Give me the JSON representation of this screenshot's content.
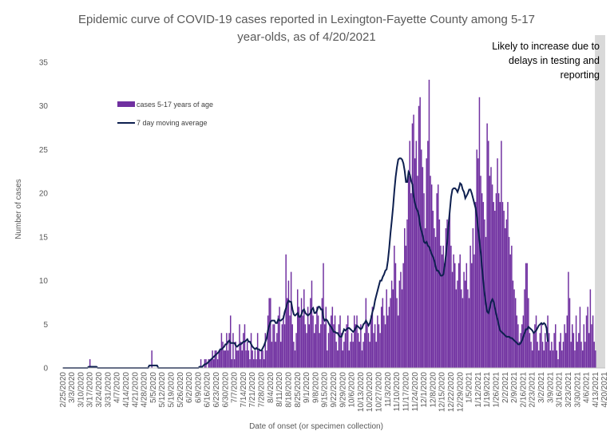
{
  "chart_data": {
    "type": "bar",
    "title_lines": [
      "Epidemic curve of COVID-19 cases reported in Lexington-Fayette County among 5-17",
      "year-olds, as of 4/20/2021"
    ],
    "xlabel": "Date of onset (or specimen collection)",
    "ylabel": "Number of cases",
    "ylim": [
      0,
      35
    ],
    "yticks": [
      0,
      5,
      10,
      15,
      20,
      25,
      30,
      35
    ],
    "x_tick_labels": [
      "2/25/2020",
      "3/3/2020",
      "3/10/2020",
      "3/17/2020",
      "3/24/2020",
      "3/31/2020",
      "4/7/2020",
      "4/14/2020",
      "4/21/2020",
      "4/28/2020",
      "5/5/2020",
      "5/12/2020",
      "5/19/2020",
      "5/26/2020",
      "6/2/2020",
      "6/9/2020",
      "6/16/2020",
      "6/23/2020",
      "6/30/2020",
      "7/7/2020",
      "7/14/2020",
      "7/21/2020",
      "7/28/2020",
      "8/4/2020",
      "8/11/2020",
      "8/18/2020",
      "8/25/2020",
      "9/1/2020",
      "9/8/2020",
      "9/15/2020",
      "9/22/2020",
      "9/29/2020",
      "10/6/2020",
      "10/13/2020",
      "10/20/2020",
      "10/27/2020",
      "11/3/2020",
      "11/10/2020",
      "11/17/2020",
      "11/24/2020",
      "12/1/2020",
      "12/8/2020",
      "12/15/2020",
      "12/22/2020",
      "12/29/2020",
      "1/5/2021",
      "1/12/2021",
      "1/19/2021",
      "1/26/2021",
      "2/2/2021",
      "2/9/2021",
      "2/16/2021",
      "2/23/2021",
      "3/2/2021",
      "3/9/2021",
      "3/16/2021",
      "3/23/2021",
      "3/30/2021",
      "4/6/2021",
      "4/13/2021",
      "4/20/2021"
    ],
    "x_start": "2/25/2020",
    "x_end": "4/20/2021",
    "legend_position": "upper-left",
    "annotation": {
      "lines": [
        "Likely to increase due to",
        "delays in testing and",
        "reporting"
      ],
      "shaded_from": "4/13/2021",
      "shaded_to": "4/20/2021",
      "shade_color": "#d9d9d9"
    },
    "colors": {
      "bars": "#7030a0",
      "line": "#0d1f4f",
      "axis": "#bfbfbf",
      "text": "#595959"
    },
    "series": [
      {
        "name": "cases 5-17 years of age",
        "type": "bar",
        "values": [
          0,
          0,
          0,
          0,
          0,
          0,
          0,
          0,
          0,
          0,
          0,
          0,
          0,
          0,
          0,
          0,
          0,
          0,
          0,
          0,
          0,
          1,
          0,
          0,
          0,
          0,
          0,
          0,
          0,
          0,
          0,
          0,
          0,
          0,
          0,
          0,
          0,
          0,
          0,
          0,
          0,
          0,
          0,
          0,
          0,
          0,
          0,
          0,
          0,
          0,
          0,
          0,
          0,
          0,
          0,
          0,
          0,
          0,
          0,
          0,
          0,
          0,
          0,
          0,
          0,
          0,
          0,
          0,
          0,
          2,
          0,
          0,
          0,
          0,
          0,
          0,
          0,
          0,
          0,
          0,
          0,
          0,
          0,
          0,
          0,
          0,
          0,
          0,
          0,
          0,
          0,
          0,
          0,
          0,
          0,
          0,
          0,
          0,
          0,
          0,
          0,
          0,
          0,
          0,
          0,
          0,
          0,
          1,
          0,
          0,
          1,
          1,
          0,
          1,
          1,
          1,
          2,
          1,
          2,
          2,
          1,
          2,
          2,
          4,
          3,
          2,
          2,
          4,
          2,
          4,
          6,
          1,
          4,
          1,
          3,
          2,
          2,
          5,
          3,
          2,
          4,
          5,
          2,
          3,
          2,
          1,
          4,
          2,
          1,
          2,
          1,
          4,
          2,
          1,
          2,
          2,
          1,
          4,
          2,
          6,
          8,
          8,
          3,
          5,
          5,
          3,
          4,
          6,
          7,
          3,
          5,
          6,
          5,
          13,
          8,
          10,
          6,
          11,
          5,
          3,
          2,
          4,
          9,
          7,
          6,
          8,
          6,
          9,
          5,
          4,
          7,
          5,
          8,
          10,
          6,
          4,
          5,
          7,
          6,
          4,
          5,
          8,
          12,
          5,
          7,
          2,
          4,
          5,
          6,
          7,
          5,
          6,
          3,
          2,
          5,
          6,
          4,
          2,
          3,
          4,
          5,
          6,
          2,
          3,
          4,
          3,
          6,
          5,
          6,
          4,
          3,
          5,
          2,
          3,
          4,
          8,
          5,
          4,
          3,
          6,
          7,
          4,
          5,
          3,
          6,
          5,
          4,
          7,
          8,
          6,
          5,
          9,
          6,
          7,
          8,
          10,
          9,
          14,
          12,
          8,
          6,
          10,
          11,
          9,
          12,
          16,
          14,
          17,
          22,
          26,
          20,
          28,
          29,
          24,
          26,
          22,
          30,
          31,
          25,
          23,
          20,
          16,
          24,
          26,
          33,
          22,
          21,
          18,
          16,
          15,
          20,
          21,
          17,
          14,
          13,
          14,
          12,
          16,
          17,
          16,
          18,
          14,
          11,
          13,
          12,
          9,
          10,
          12,
          13,
          9,
          8,
          11,
          10,
          12,
          9,
          8,
          14,
          12,
          16,
          13,
          19,
          25,
          24,
          31,
          22,
          20,
          19,
          17,
          15,
          28,
          26,
          22,
          23,
          21,
          19,
          18,
          20,
          24,
          20,
          19,
          26,
          19,
          18,
          16,
          17,
          19,
          15,
          13,
          14,
          10,
          9,
          8,
          6,
          5,
          3,
          4,
          5,
          6,
          9,
          12,
          12,
          8,
          4,
          3,
          2,
          4,
          5,
          6,
          3,
          2,
          4,
          5,
          3,
          2,
          4,
          3,
          6,
          4,
          2,
          3,
          2,
          4,
          5,
          2,
          1,
          3,
          4,
          2,
          3,
          5,
          4,
          6,
          11,
          8,
          3,
          5,
          4,
          2,
          6,
          3,
          4,
          7,
          3,
          2,
          5,
          3,
          6,
          7,
          4,
          9,
          5,
          6,
          3,
          2
        ]
      },
      {
        "name": "7 day moving average",
        "type": "line",
        "values": [
          0,
          0,
          0,
          0,
          0,
          0,
          0,
          0,
          0,
          0,
          0,
          0,
          0,
          0,
          0,
          0,
          0,
          0,
          0,
          0,
          0.14,
          0.14,
          0.14,
          0.14,
          0.14,
          0.14,
          0.14,
          0,
          0,
          0,
          0,
          0,
          0,
          0,
          0,
          0,
          0,
          0,
          0,
          0,
          0,
          0,
          0,
          0,
          0,
          0,
          0,
          0,
          0,
          0,
          0,
          0,
          0,
          0,
          0,
          0,
          0,
          0,
          0,
          0,
          0,
          0,
          0,
          0,
          0,
          0,
          0,
          0.29,
          0.29,
          0.29,
          0.29,
          0.29,
          0.29,
          0.29,
          0,
          0,
          0,
          0,
          0,
          0,
          0,
          0,
          0,
          0,
          0,
          0,
          0,
          0,
          0,
          0,
          0,
          0,
          0,
          0,
          0,
          0,
          0,
          0,
          0,
          0,
          0,
          0,
          0,
          0,
          0,
          0,
          0.14,
          0.14,
          0.14,
          0.29,
          0.43,
          0.43,
          0.57,
          0.71,
          0.86,
          1.0,
          1.14,
          1.29,
          1.43,
          1.57,
          1.71,
          1.86,
          2.14,
          2.14,
          2.29,
          2.43,
          2.71,
          2.71,
          3.0,
          3.14,
          2.86,
          2.86,
          2.86,
          2.86,
          2.57,
          2.43,
          2.57,
          2.71,
          2.71,
          2.86,
          3.0,
          3.0,
          3.14,
          3.29,
          3.0,
          3.0,
          2.71,
          2.43,
          2.29,
          2.14,
          2.29,
          2.14,
          2.14,
          2.0,
          2.0,
          2.29,
          2.57,
          3.0,
          3.43,
          4.29,
          4.86,
          5.29,
          5.43,
          5.43,
          5.43,
          5.14,
          5.14,
          5.57,
          5.43,
          5.43,
          5.57,
          5.71,
          6.43,
          6.86,
          7.43,
          7.71,
          7.57,
          7.57,
          6.71,
          6.14,
          6.0,
          6.14,
          6.29,
          5.86,
          5.86,
          6.14,
          6.57,
          6.71,
          6.29,
          6.14,
          6.0,
          6.14,
          6.29,
          6.71,
          6.86,
          6.29,
          6.29,
          6.57,
          7.0,
          7.0,
          6.71,
          6.71,
          5.71,
          5.43,
          5.57,
          5.43,
          5.14,
          4.86,
          4.71,
          4.43,
          4.14,
          4.14,
          4.0,
          4.0,
          3.71,
          3.57,
          3.57,
          4.0,
          4.43,
          4.29,
          4.43,
          4.57,
          4.57,
          4.43,
          4.29,
          4.14,
          4.29,
          4.57,
          4.86,
          4.71,
          4.57,
          4.43,
          4.57,
          5.0,
          5.14,
          5.43,
          5.14,
          4.86,
          5.14,
          5.71,
          6.43,
          6.86,
          7.71,
          8.29,
          8.86,
          9.43,
          10.0,
          10.0,
          10.43,
          10.71,
          11.14,
          11.29,
          12.29,
          13.71,
          15.43,
          16.86,
          18.43,
          20.29,
          21.86,
          23.0,
          23.86,
          24.0,
          24.0,
          23.86,
          23.43,
          22.57,
          21.29,
          21.29,
          22.43,
          22.14,
          21.43,
          21.0,
          19.57,
          18.86,
          18.29,
          18.0,
          17.43,
          16.29,
          15.71,
          15.14,
          14.43,
          14.29,
          14.43,
          14.0,
          13.86,
          13.43,
          13.0,
          12.71,
          12.29,
          11.57,
          11.14,
          11.14,
          10.86,
          10.57,
          10.57,
          10.71,
          11.71,
          13.0,
          14.43,
          16.43,
          18.0,
          19.57,
          20.43,
          20.57,
          20.57,
          20.43,
          20.14,
          20.57,
          21.14,
          21.0,
          20.43,
          20.14,
          19.43,
          19.71,
          20.0,
          20.43,
          20.43,
          20.0,
          19.43,
          18.86,
          18.29,
          17.29,
          15.86,
          14.57,
          13.14,
          11.43,
          9.86,
          8.43,
          7.29,
          6.43,
          6.29,
          6.86,
          7.57,
          7.86,
          7.57,
          6.86,
          6.14,
          5.57,
          4.86,
          4.29,
          4.14,
          4.0,
          3.86,
          3.71,
          3.57,
          3.57,
          3.57,
          3.43,
          3.43,
          3.29,
          3.14,
          3.0,
          2.86,
          2.71,
          2.71,
          2.86,
          3.14,
          3.57,
          4.0,
          4.43,
          4.43,
          4.71,
          4.57,
          4.43,
          4.29,
          4.0,
          4.14,
          4.29,
          4.57,
          4.86,
          5.0,
          5.14,
          5.0,
          5.14,
          5.0,
          4.57,
          3.0
        ]
      }
    ]
  }
}
